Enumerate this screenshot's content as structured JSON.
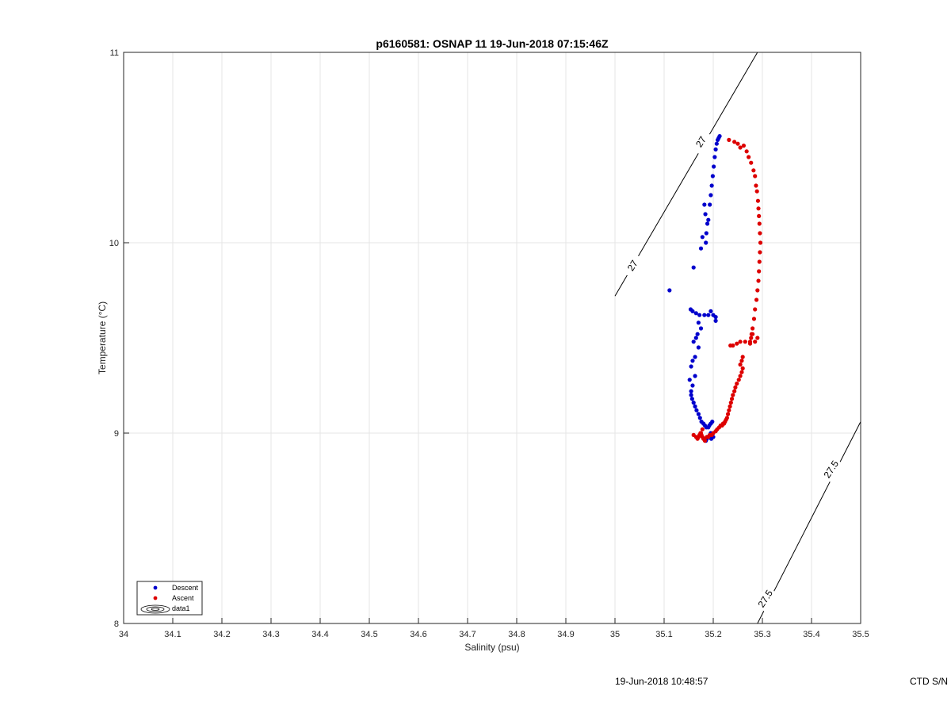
{
  "chart_data": {
    "type": "scatter",
    "title": "p6160581: OSNAP 11 19-Jun-2018 07:15:46Z",
    "xlabel": "Salinity (psu)",
    "ylabel": "Temperature (°C)",
    "xlim": [
      34,
      35.5
    ],
    "ylim": [
      8,
      11
    ],
    "xticks": [
      "34",
      "34.1",
      "34.2",
      "34.3",
      "34.4",
      "34.5",
      "34.6",
      "34.7",
      "34.8",
      "34.9",
      "35",
      "35.1",
      "35.2",
      "35.3",
      "35.4",
      "35.5"
    ],
    "yticks": [
      "8",
      "9",
      "10",
      "11"
    ],
    "grid": true,
    "legend": {
      "placement": "bottom-left",
      "entries": [
        {
          "label": "Descent",
          "color": "#0000cc",
          "marker": "dot"
        },
        {
          "label": "Ascent",
          "color": "#dd0000",
          "marker": "dot"
        },
        {
          "label": "data1",
          "color": "#000000",
          "marker": "contour"
        }
      ]
    },
    "contours": [
      {
        "label": "27",
        "points": [
          [
            35.0,
            9.72
          ],
          [
            35.29,
            11.0
          ]
        ]
      },
      {
        "label": "27.5",
        "points": [
          [
            35.29,
            8.0
          ],
          [
            35.5,
            9.06
          ]
        ]
      }
    ],
    "contour_labels": [
      {
        "text": "27",
        "x": 35.036,
        "y": 9.88
      },
      {
        "text": "27",
        "x": 35.175,
        "y": 10.53
      },
      {
        "text": "27.5",
        "x": 35.306,
        "y": 8.13
      },
      {
        "text": "27.5",
        "x": 35.44,
        "y": 8.81
      }
    ],
    "series": [
      {
        "name": "Descent",
        "color": "#0000cc",
        "x": [
          35.213,
          35.211,
          35.209,
          35.207,
          35.205,
          35.203,
          35.201,
          35.199,
          35.197,
          35.195,
          35.193,
          35.19,
          35.188,
          35.186,
          35.185,
          35.184,
          35.182,
          35.178,
          35.175,
          35.16,
          35.111,
          35.154,
          35.158,
          35.165,
          35.172,
          35.182,
          35.19,
          35.195,
          35.2,
          35.205,
          35.205,
          35.17,
          35.175,
          35.168,
          35.165,
          35.16,
          35.17,
          35.163,
          35.158,
          35.155,
          35.163,
          35.152,
          35.158,
          35.155,
          35.155,
          35.157,
          35.16,
          35.163,
          35.166,
          35.17,
          35.173,
          35.176,
          35.18,
          35.183,
          35.186,
          35.19,
          35.192,
          35.195,
          35.198,
          35.195,
          35.193,
          35.19,
          35.187,
          35.185,
          35.183,
          35.188,
          35.195,
          35.2,
          35.196
        ],
        "y": [
          10.56,
          10.55,
          10.54,
          10.52,
          10.49,
          10.45,
          10.4,
          10.35,
          10.3,
          10.25,
          10.2,
          10.12,
          10.1,
          10.05,
          10.0,
          10.15,
          10.2,
          10.03,
          9.97,
          9.87,
          9.75,
          9.65,
          9.64,
          9.63,
          9.62,
          9.62,
          9.62,
          9.64,
          9.62,
          9.61,
          9.59,
          9.58,
          9.55,
          9.52,
          9.5,
          9.48,
          9.45,
          9.4,
          9.38,
          9.35,
          9.3,
          9.28,
          9.25,
          9.22,
          9.2,
          9.18,
          9.16,
          9.14,
          9.12,
          9.1,
          9.08,
          9.06,
          9.05,
          9.04,
          9.03,
          9.03,
          9.04,
          9.05,
          9.06,
          9.0,
          8.99,
          8.98,
          8.97,
          8.96,
          8.97,
          8.98,
          8.99,
          8.98,
          8.97
        ]
      },
      {
        "name": "Ascent",
        "color": "#dd0000",
        "x": [
          35.232,
          35.243,
          35.25,
          35.255,
          35.262,
          35.268,
          35.272,
          35.277,
          35.282,
          35.285,
          35.287,
          35.289,
          35.291,
          35.292,
          35.293,
          35.294,
          35.295,
          35.296,
          35.295,
          35.294,
          35.293,
          35.292,
          35.29,
          35.288,
          35.285,
          35.283,
          35.28,
          35.278,
          35.277,
          35.275,
          35.275,
          35.285,
          35.29,
          35.28,
          35.265,
          35.255,
          35.248,
          35.24,
          35.235,
          35.26,
          35.258,
          35.255,
          35.26,
          35.258,
          35.255,
          35.252,
          35.248,
          35.245,
          35.243,
          35.24,
          35.238,
          35.236,
          35.234,
          35.232,
          35.23,
          35.228,
          35.226,
          35.224,
          35.222,
          35.22,
          35.218,
          35.215,
          35.212,
          35.208,
          35.205,
          35.2,
          35.197,
          35.193,
          35.19,
          35.187,
          35.182,
          35.18,
          35.178,
          35.176,
          35.175,
          35.174,
          35.172,
          35.17,
          35.168,
          35.165,
          35.16,
          35.178,
          35.183
        ],
        "y": [
          10.54,
          10.53,
          10.52,
          10.5,
          10.51,
          10.48,
          10.45,
          10.42,
          10.38,
          10.35,
          10.3,
          10.27,
          10.22,
          10.18,
          10.14,
          10.1,
          10.05,
          10.0,
          9.95,
          9.9,
          9.85,
          9.8,
          9.75,
          9.7,
          9.65,
          9.6,
          9.55,
          9.52,
          9.5,
          9.48,
          9.47,
          9.48,
          9.5,
          9.52,
          9.48,
          9.48,
          9.47,
          9.46,
          9.46,
          9.4,
          9.38,
          9.36,
          9.34,
          9.32,
          9.3,
          9.28,
          9.26,
          9.24,
          9.22,
          9.2,
          9.18,
          9.16,
          9.14,
          9.12,
          9.1,
          9.08,
          9.07,
          9.06,
          9.05,
          9.05,
          9.04,
          9.04,
          9.03,
          9.02,
          9.01,
          9.0,
          8.99,
          8.99,
          8.98,
          8.98,
          8.97,
          8.97,
          8.98,
          8.99,
          9.0,
          9.0,
          8.99,
          8.98,
          8.97,
          8.98,
          8.99,
          9.02,
          8.96
        ]
      }
    ]
  },
  "footer": {
    "timestamp": "19-Jun-2018 10:48:57",
    "serial": "CTD S/N"
  }
}
